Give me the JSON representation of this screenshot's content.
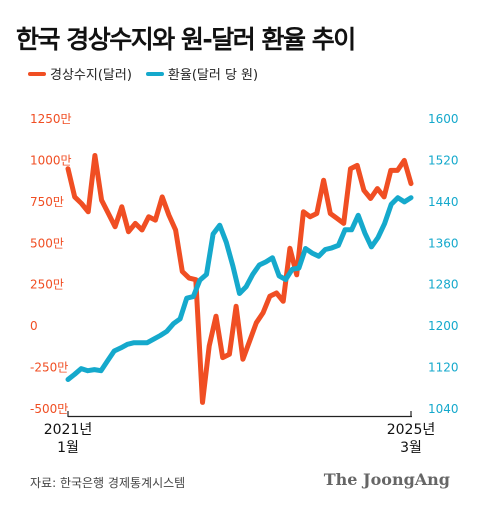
{
  "title": "한국 경상수지와 원-달러 환율 추이",
  "source": "자료: 한국은행 경제통계시스템",
  "brand": "The JoongAng",
  "colors": {
    "current_account": "#f04e23",
    "exchange_rate": "#15a9cc"
  },
  "chart_data": {
    "type": "line",
    "legend_placement": "top-left",
    "grid": false,
    "x_labels": [
      {
        "position": "start",
        "year": "2021년",
        "month": "1월"
      },
      {
        "position": "end",
        "year": "2025년",
        "month": "3월"
      }
    ],
    "y_left": {
      "ticks": [
        "1250만",
        "1000만",
        "750만",
        "500만",
        "250만",
        "0",
        "-250만",
        "-500만"
      ],
      "tick_values": [
        1250,
        1000,
        750,
        500,
        250,
        0,
        -250,
        -500
      ],
      "range": [
        -500,
        1250
      ]
    },
    "y_right": {
      "ticks": [
        "1600",
        "1520",
        "1440",
        "1360",
        "1280",
        "1200",
        "1120",
        "1040"
      ],
      "tick_values": [
        1600,
        1520,
        1440,
        1360,
        1280,
        1200,
        1120,
        1040
      ],
      "range": [
        1040,
        1600
      ]
    },
    "series": [
      {
        "name": "경상수지(달러)",
        "axis": "left",
        "values": [
          950,
          780,
          740,
          690,
          1030,
          760,
          680,
          600,
          720,
          570,
          620,
          580,
          660,
          640,
          780,
          670,
          580,
          330,
          290,
          280,
          -460,
          -120,
          60,
          -190,
          -170,
          120,
          -200,
          -90,
          20,
          80,
          180,
          200,
          150,
          470,
          310,
          690,
          660,
          680,
          880,
          680,
          650,
          620,
          950,
          970,
          820,
          770,
          830,
          780,
          940,
          940,
          1000,
          860
        ]
      },
      {
        "name": "환율(달러 당 원)",
        "axis": "right",
        "values": [
          1097,
          1107,
          1118,
          1114,
          1116,
          1114,
          1133,
          1152,
          1158,
          1165,
          1168,
          1168,
          1168,
          1175,
          1182,
          1190,
          1205,
          1214,
          1254,
          1257,
          1289,
          1300,
          1378,
          1395,
          1362,
          1316,
          1263,
          1276,
          1300,
          1318,
          1324,
          1332,
          1297,
          1290,
          1310,
          1312,
          1350,
          1341,
          1335,
          1348,
          1351,
          1356,
          1386,
          1386,
          1414,
          1380,
          1353,
          1371,
          1398,
          1435,
          1448,
          1440,
          1448
        ]
      }
    ]
  }
}
